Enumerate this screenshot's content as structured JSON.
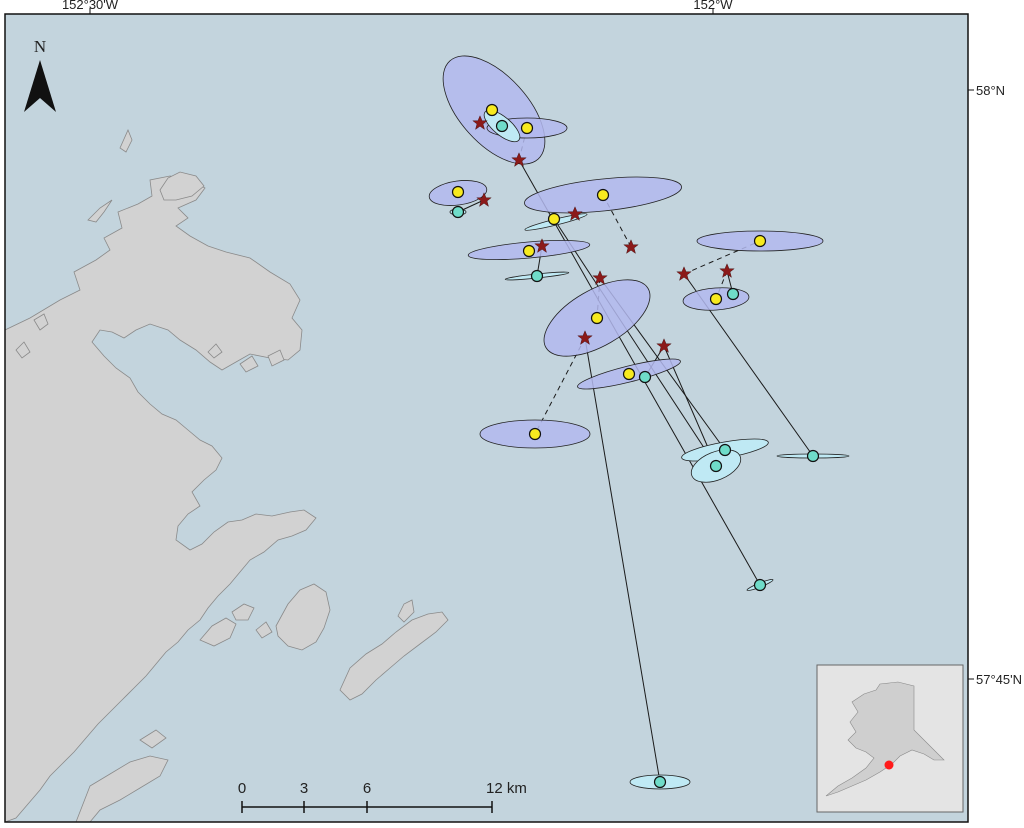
{
  "map": {
    "lon_labels": [
      "152°30'W",
      "152°W"
    ],
    "lat_labels": [
      "58°N",
      "57°45'N"
    ],
    "north_label": "N",
    "scale_ticks": [
      "0",
      "3",
      "6",
      "12 km"
    ],
    "colors": {
      "ocean": "#c3d4dd",
      "land": "#d2d2d2",
      "coast": "#8a8a8a",
      "ellipse_purple": "#b3b8ee",
      "ellipse_cyan": "#bfe9f4",
      "marker_yellow": "#f7ea1f",
      "marker_cyan": "#6fdcc9",
      "star": "#8b1a1a",
      "inset_dot": "#ff1a1a"
    },
    "legend_icons": [
      "yellow-circle-marker",
      "cyan-circle-marker",
      "red-star-marker",
      "north-arrow-icon"
    ]
  }
}
